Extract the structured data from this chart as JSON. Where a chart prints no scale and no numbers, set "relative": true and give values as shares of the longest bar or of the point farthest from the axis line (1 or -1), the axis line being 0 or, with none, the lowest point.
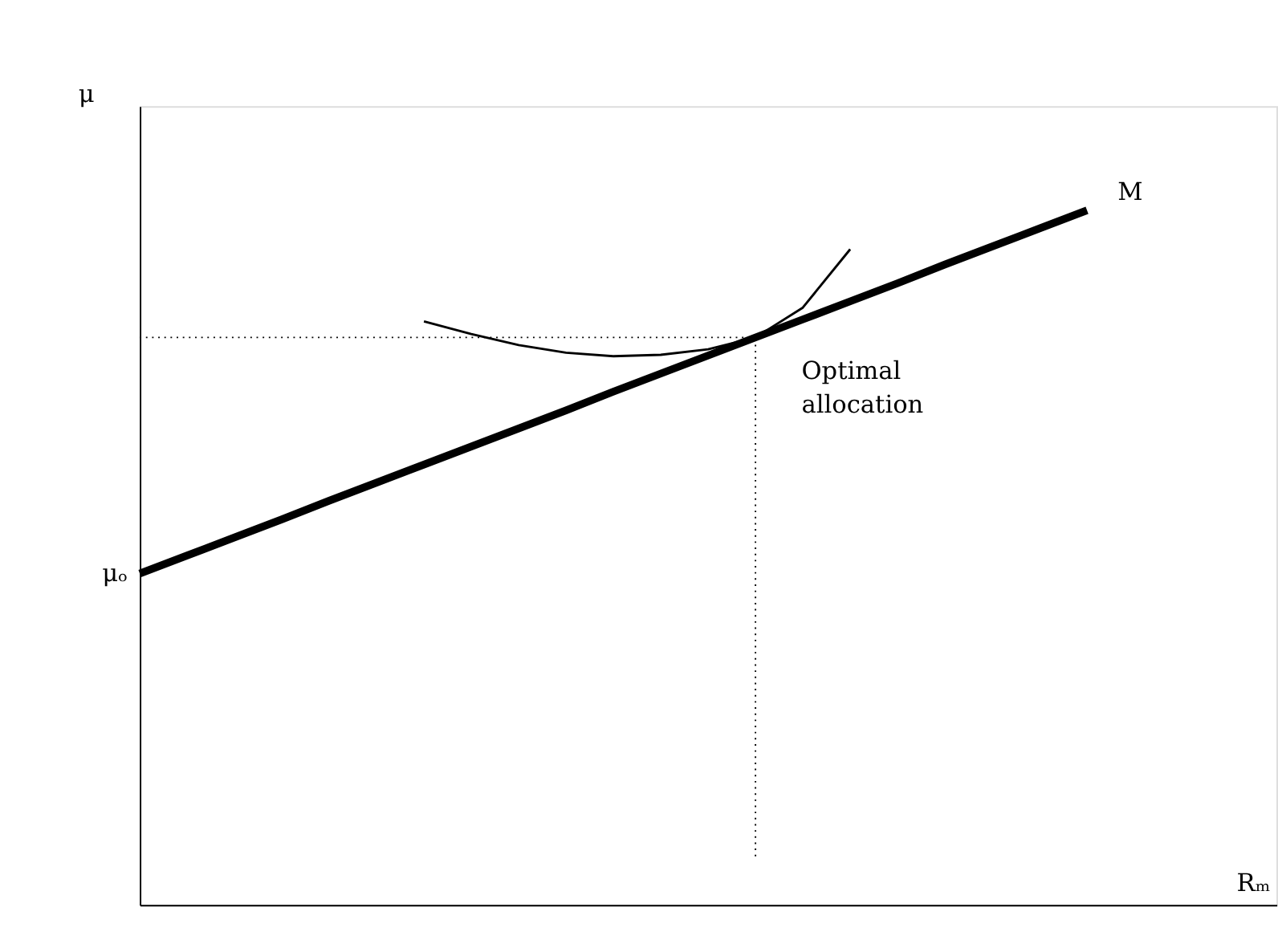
{
  "chart_data": {
    "type": "line",
    "relative": true,
    "ylabel": "μ",
    "line_style": "solid",
    "marker": "none",
    "grid": false,
    "categories": [
      null,
      null,
      null,
      null,
      null,
      null,
      null,
      null,
      null,
      null,
      null,
      null,
      null,
      null,
      null,
      null,
      null,
      null,
      null,
      null,
      null
    ],
    "series": [
      {
        "color": "#000000",
        "values": [
          0.477,
          0.503,
          0.529,
          0.555,
          0.582,
          0.608,
          0.634,
          0.66,
          0.686,
          0.712,
          0.739,
          0.765,
          0.791,
          0.817,
          0.843,
          0.869,
          0.895,
          0.922,
          0.948,
          0.974,
          1.0
        ]
      },
      {
        "color": "#000000",
        "values": [
          null,
          null,
          null,
          null,
          null,
          null,
          0.84,
          0.822,
          0.806,
          0.795,
          0.79,
          0.792,
          0.8,
          0.817,
          0.86,
          0.944,
          null,
          null,
          null,
          null,
          null
        ]
      }
    ],
    "ref_lines": [
      {
        "axis": "y",
        "value": 0.817,
        "line_style": "dotted"
      }
    ],
    "annotations": [
      "M",
      "Optimal allocation",
      "μₒ",
      "Rₘ"
    ]
  }
}
